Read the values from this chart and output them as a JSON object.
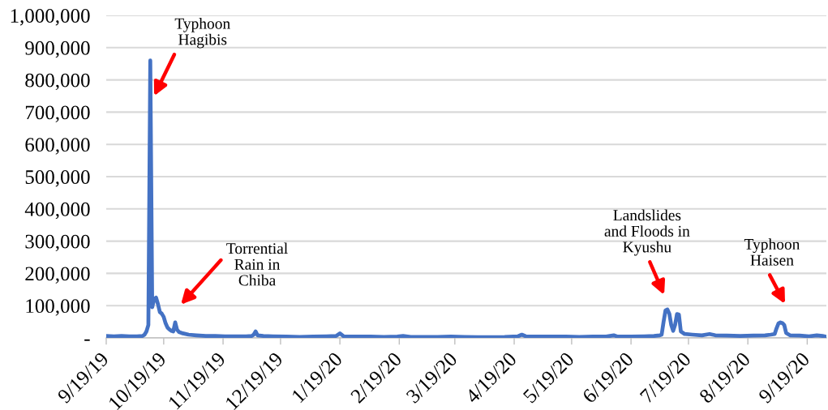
{
  "chart_data": {
    "type": "line",
    "color": "#4472c4",
    "line_style": "solid",
    "marker": "none",
    "grid": "y",
    "x": [
      "2019-09-19",
      "2019-09-23",
      "2019-09-27",
      "2019-10-01",
      "2019-10-05",
      "2019-10-08",
      "2019-10-09",
      "2019-10-10",
      "2019-10-11",
      "2019-10-12",
      "2019-10-13",
      "2019-10-14",
      "2019-10-15",
      "2019-10-16",
      "2019-10-17",
      "2019-10-18",
      "2019-10-19",
      "2019-10-20",
      "2019-10-21",
      "2019-10-22",
      "2019-10-23",
      "2019-10-24",
      "2019-10-25",
      "2019-10-26",
      "2019-10-27",
      "2019-10-29",
      "2019-11-01",
      "2019-11-05",
      "2019-11-10",
      "2019-11-15",
      "2019-11-20",
      "2019-11-25",
      "2019-12-01",
      "2019-12-04",
      "2019-12-05",
      "2019-12-06",
      "2019-12-07",
      "2019-12-10",
      "2019-12-15",
      "2019-12-22",
      "2019-12-29",
      "2020-01-05",
      "2020-01-12",
      "2020-01-17",
      "2020-01-19",
      "2020-01-21",
      "2020-01-28",
      "2020-02-04",
      "2020-02-11",
      "2020-02-18",
      "2020-02-21",
      "2020-02-25",
      "2020-03-03",
      "2020-03-10",
      "2020-03-17",
      "2020-03-24",
      "2020-03-31",
      "2020-04-07",
      "2020-04-14",
      "2020-04-21",
      "2020-04-23",
      "2020-04-25",
      "2020-05-02",
      "2020-05-09",
      "2020-05-16",
      "2020-05-23",
      "2020-05-30",
      "2020-06-06",
      "2020-06-10",
      "2020-06-12",
      "2020-06-19",
      "2020-06-26",
      "2020-07-01",
      "2020-07-04",
      "2020-07-05",
      "2020-07-06",
      "2020-07-07",
      "2020-07-08",
      "2020-07-09",
      "2020-07-10",
      "2020-07-11",
      "2020-07-12",
      "2020-07-13",
      "2020-07-14",
      "2020-07-15",
      "2020-07-17",
      "2020-07-21",
      "2020-07-26",
      "2020-07-30",
      "2020-08-02",
      "2020-08-08",
      "2020-08-15",
      "2020-08-22",
      "2020-08-28",
      "2020-08-31",
      "2020-09-02",
      "2020-09-03",
      "2020-09-04",
      "2020-09-05",
      "2020-09-06",
      "2020-09-07",
      "2020-09-08",
      "2020-09-10",
      "2020-09-15",
      "2020-09-20",
      "2020-09-24",
      "2020-09-27",
      "2020-09-29"
    ],
    "values": [
      6000,
      5000,
      6000,
      5000,
      5000,
      6000,
      10000,
      20000,
      40000,
      860000,
      95000,
      120000,
      125000,
      105000,
      80000,
      75000,
      65000,
      45000,
      32000,
      26000,
      22000,
      20000,
      48000,
      25000,
      18000,
      14000,
      10000,
      8000,
      6000,
      6000,
      5000,
      5000,
      5000,
      6000,
      10000,
      20000,
      8000,
      6000,
      5000,
      4000,
      3000,
      4000,
      5000,
      6000,
      14000,
      5000,
      4000,
      4000,
      3000,
      4000,
      6000,
      3000,
      3000,
      3000,
      4000,
      3000,
      2000,
      2000,
      3000,
      5000,
      10000,
      5000,
      4000,
      4000,
      4000,
      3000,
      4000,
      4000,
      8000,
      4000,
      4000,
      5000,
      6000,
      8000,
      10000,
      50000,
      85000,
      88000,
      75000,
      40000,
      22000,
      40000,
      74000,
      72000,
      20000,
      12000,
      10000,
      8000,
      12000,
      8000,
      7000,
      6000,
      7000,
      8000,
      10000,
      12000,
      30000,
      45000,
      48000,
      46000,
      40000,
      15000,
      8000,
      7000,
      5000,
      8000,
      6000,
      3000
    ],
    "xlim": [
      "2019-09-19",
      "2020-09-29"
    ],
    "xticks": [
      {
        "value": "2019-09-19",
        "label": "9/19/19"
      },
      {
        "value": "2019-10-19",
        "label": "10/19/19"
      },
      {
        "value": "2019-11-19",
        "label": "11/19/19"
      },
      {
        "value": "2019-12-19",
        "label": "12/19/19"
      },
      {
        "value": "2020-01-19",
        "label": "1/19/20"
      },
      {
        "value": "2020-02-19",
        "label": "2/19/20"
      },
      {
        "value": "2020-03-19",
        "label": "3/19/20"
      },
      {
        "value": "2020-04-19",
        "label": "4/19/20"
      },
      {
        "value": "2020-05-19",
        "label": "5/19/20"
      },
      {
        "value": "2020-06-19",
        "label": "6/19/20"
      },
      {
        "value": "2020-07-19",
        "label": "7/19/20"
      },
      {
        "value": "2020-08-19",
        "label": "8/19/20"
      },
      {
        "value": "2020-09-19",
        "label": "9/19/20"
      }
    ],
    "ylim": [
      0,
      1000000
    ],
    "yticks": [
      {
        "value": 0,
        "label": "-"
      },
      {
        "value": 100000,
        "label": "100,000"
      },
      {
        "value": 200000,
        "label": "200,000"
      },
      {
        "value": 300000,
        "label": "300,000"
      },
      {
        "value": 400000,
        "label": "400,000"
      },
      {
        "value": 500000,
        "label": "500,000"
      },
      {
        "value": 600000,
        "label": "600,000"
      },
      {
        "value": 700000,
        "label": "700,000"
      },
      {
        "value": 800000,
        "label": "800,000"
      },
      {
        "value": 900000,
        "label": "900,000"
      },
      {
        "value": 1000000,
        "label": "1,000,000"
      }
    ],
    "annotations": [
      {
        "text": "Typhoon\nHagibis",
        "x": "2019-10-14",
        "y": 750000
      },
      "Torrential\nRain in\nChiba",
      "Landslides\nand Floods in\nKyushu",
      "Typhoon\nHaisen"
    ]
  }
}
